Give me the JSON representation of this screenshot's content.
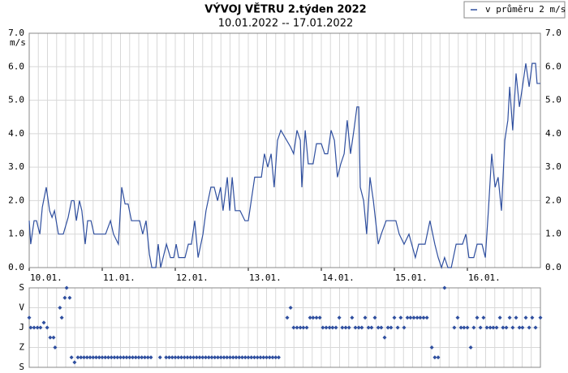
{
  "chart_data": [
    {
      "type": "line",
      "title": "VÝVOJ VĚTRU 2.týden 2022",
      "subtitle": "10.01.2022 -- 17.01.2022",
      "y_label": "m/s",
      "legend": "top-right",
      "grid": true,
      "x_grid_step": 3,
      "xlim": [
        0,
        168
      ],
      "xticks": [
        {
          "value": 0,
          "label": "10.01."
        },
        {
          "value": 24,
          "label": "11.01."
        },
        {
          "value": 48,
          "label": "12.01."
        },
        {
          "value": 72,
          "label": "13.01."
        },
        {
          "value": 96,
          "label": "14.01."
        },
        {
          "value": 120,
          "label": "15.01."
        },
        {
          "value": 144,
          "label": "16.01."
        }
      ],
      "ylim": [
        0,
        7
      ],
      "yticks": [
        {
          "value": 0,
          "label": "0.0"
        },
        {
          "value": 1,
          "label": "1.0"
        },
        {
          "value": 2,
          "label": "2.0"
        },
        {
          "value": 3,
          "label": "3.0"
        },
        {
          "value": 4,
          "label": "4.0"
        },
        {
          "value": 5,
          "label": "5.0"
        },
        {
          "value": 6,
          "label": "6.0"
        },
        {
          "value": 7,
          "label": "7.0"
        }
      ],
      "x": [
        0,
        0.5,
        1.6,
        2.4,
        3.5,
        4.3,
        5.6,
        6.7,
        7.5,
        8.3,
        9.6,
        11.2,
        12.8,
        13.9,
        14.7,
        15.5,
        16.5,
        17.3,
        18.4,
        19.2,
        20.3,
        21.3,
        22.9,
        25.1,
        26.7,
        27.7,
        29.3,
        30.4,
        31.5,
        32.5,
        33.6,
        36.3,
        37.3,
        38.4,
        39.5,
        40.3,
        41.6,
        42.4,
        43.2,
        45.1,
        46.4,
        47.5,
        48.3,
        49.1,
        51.2,
        52.3,
        53.3,
        54.4,
        55.5,
        57.1,
        58.1,
        59.7,
        60.8,
        61.9,
        62.9,
        63.7,
        65.1,
        65.9,
        66.7,
        67.7,
        69.3,
        70.9,
        72,
        74.1,
        76.3,
        77.3,
        78.4,
        79.5,
        80.5,
        81.6,
        82.7,
        85.9,
        86.9,
        88,
        89.1,
        89.6,
        90.7,
        91.7,
        93.3,
        94.4,
        96,
        97.1,
        98.1,
        99.2,
        100.3,
        101.3,
        102.4,
        103.5,
        104.5,
        105.6,
        106.7,
        107.7,
        108.3,
        108.8,
        109.9,
        110.9,
        112,
        113.1,
        114.7,
        115.7,
        117.3,
        120.5,
        121.6,
        123.2,
        124.8,
        126.9,
        128,
        130.1,
        131.7,
        133.3,
        134.4,
        135.5,
        136.5,
        137.6,
        138.7,
        140.3,
        142.4,
        143.5,
        144.5,
        146.1,
        147.2,
        148.8,
        149.9,
        150.9,
        152,
        153.1,
        154.1,
        155.2,
        156.3,
        157.3,
        157.9,
        158.9,
        160,
        161.1,
        162.1,
        163.2,
        164.3,
        165.3,
        166.4,
        166.9,
        168
      ],
      "series": [
        {
          "name": "v průměru 2 m/s",
          "color": "#2f4f9f",
          "values": [
            1.4,
            0.7,
            1.4,
            1.4,
            1.0,
            1.8,
            2.4,
            1.7,
            1.5,
            1.7,
            1.0,
            1.0,
            1.5,
            2.0,
            2.0,
            1.4,
            2.0,
            1.7,
            0.7,
            1.4,
            1.4,
            1.0,
            1.0,
            1.0,
            1.4,
            1.0,
            0.7,
            2.4,
            1.9,
            1.9,
            1.4,
            1.4,
            1.0,
            1.4,
            0.4,
            0,
            0,
            0.7,
            0,
            0.7,
            0.3,
            0.3,
            0.7,
            0.3,
            0.3,
            0.7,
            0.7,
            1.4,
            0.3,
            1.0,
            1.7,
            2.4,
            2.4,
            2.0,
            2.4,
            1.7,
            2.7,
            1.7,
            2.7,
            1.7,
            1.7,
            1.4,
            1.4,
            2.7,
            2.7,
            3.4,
            3.0,
            3.4,
            2.4,
            3.8,
            4.1,
            3.6,
            3.4,
            4.1,
            3.8,
            2.4,
            4.1,
            3.1,
            3.1,
            3.7,
            3.7,
            3.4,
            3.4,
            4.1,
            3.8,
            2.7,
            3.1,
            3.4,
            4.4,
            3.4,
            4.1,
            4.8,
            4.8,
            2.4,
            2.0,
            1.0,
            2.7,
            2.0,
            0.7,
            1.0,
            1.4,
            1.4,
            1.0,
            0.7,
            1.0,
            0.3,
            0.7,
            0.7,
            1.4,
            0.7,
            0.3,
            0,
            0.3,
            0,
            0,
            0.7,
            0.7,
            1.0,
            0.3,
            0.3,
            0.7,
            0.7,
            0.3,
            1.7,
            3.4,
            2.4,
            2.7,
            1.7,
            3.8,
            4.4,
            5.4,
            4.1,
            5.8,
            4.8,
            5.4,
            6.1,
            5.4,
            6.1,
            6.1,
            5.5,
            5.5
          ]
        }
      ]
    },
    {
      "type": "scatter",
      "grid": true,
      "x_grid_step": 3,
      "xlim": [
        0,
        168
      ],
      "ylim": [
        360,
        0
      ],
      "yticks": [
        {
          "value": 0,
          "label": "S"
        },
        {
          "value": 90,
          "label": "V"
        },
        {
          "value": 180,
          "label": "J"
        },
        {
          "value": 270,
          "label": "Z"
        },
        {
          "value": 360,
          "label": "S"
        }
      ],
      "x": [
        0,
        0.5,
        1.6,
        2.7,
        3.7,
        4.8,
        5.9,
        6.9,
        8,
        8.5,
        10.1,
        10.7,
        11.7,
        12.3,
        13.3,
        13.9,
        14.9,
        16,
        17,
        18,
        19,
        20,
        21,
        22,
        23,
        24,
        25,
        26,
        27,
        28,
        29,
        30,
        31,
        32,
        33,
        34,
        35,
        36,
        37,
        38,
        39,
        40,
        43,
        45,
        46,
        47,
        48,
        49,
        50,
        51,
        52,
        53,
        54,
        55,
        56,
        57,
        58,
        59,
        60,
        61,
        62,
        63,
        64,
        65,
        66,
        67,
        68,
        69,
        70,
        71,
        72,
        73,
        74,
        75,
        76,
        77,
        78,
        79,
        80,
        81,
        82,
        84.8,
        85.9,
        86.9,
        88,
        89.1,
        90.1,
        91.2,
        92.3,
        93.3,
        94.4,
        95.5,
        96.5,
        97.6,
        98.7,
        99.7,
        100.8,
        101.9,
        102.9,
        104,
        105.1,
        106.1,
        107.2,
        108.3,
        109.3,
        110.4,
        111.5,
        112.5,
        113.6,
        114.7,
        115.7,
        116.8,
        117.9,
        118.9,
        120,
        121.1,
        122.1,
        123.2,
        124.3,
        125.3,
        126.4,
        127.5,
        128.5,
        129.6,
        130.7,
        132.3,
        133.3,
        134.4,
        136.5,
        139.7,
        140.8,
        141.9,
        142.9,
        144,
        145.1,
        146.1,
        147.2,
        148.3,
        149.3,
        150.4,
        151.5,
        152.5,
        153.6,
        154.7,
        155.7,
        156.8,
        157.9,
        158.9,
        160,
        161.1,
        162.1,
        163.2,
        164.3,
        165.3,
        166.4,
        168
      ],
      "series": [
        {
          "color": "#2f4f9f",
          "values": [
            135,
            180,
            180,
            180,
            180,
            157.5,
            180,
            225,
            225,
            270,
            90,
            135,
            45,
            0,
            45,
            315,
            337.5,
            315,
            315,
            315,
            315,
            315,
            315,
            315,
            315,
            315,
            315,
            315,
            315,
            315,
            315,
            315,
            315,
            315,
            315,
            315,
            315,
            315,
            315,
            315,
            315,
            315,
            315,
            315,
            315,
            315,
            315,
            315,
            315,
            315,
            315,
            315,
            315,
            315,
            315,
            315,
            315,
            315,
            315,
            315,
            315,
            315,
            315,
            315,
            315,
            315,
            315,
            315,
            315,
            315,
            315,
            315,
            315,
            315,
            315,
            315,
            315,
            315,
            315,
            315,
            315,
            135,
            90,
            180,
            180,
            180,
            180,
            180,
            135,
            135,
            135,
            135,
            180,
            180,
            180,
            180,
            180,
            135,
            180,
            180,
            180,
            135,
            180,
            180,
            180,
            135,
            180,
            180,
            135,
            180,
            180,
            225,
            180,
            180,
            135,
            180,
            135,
            180,
            135,
            135,
            135,
            135,
            135,
            135,
            135,
            270,
            315,
            315,
            0,
            180,
            135,
            180,
            180,
            180,
            270,
            180,
            135,
            180,
            135,
            180,
            180,
            180,
            180,
            135,
            180,
            180,
            135,
            180,
            135,
            180,
            180,
            135,
            180,
            135,
            180,
            135
          ]
        }
      ]
    }
  ]
}
